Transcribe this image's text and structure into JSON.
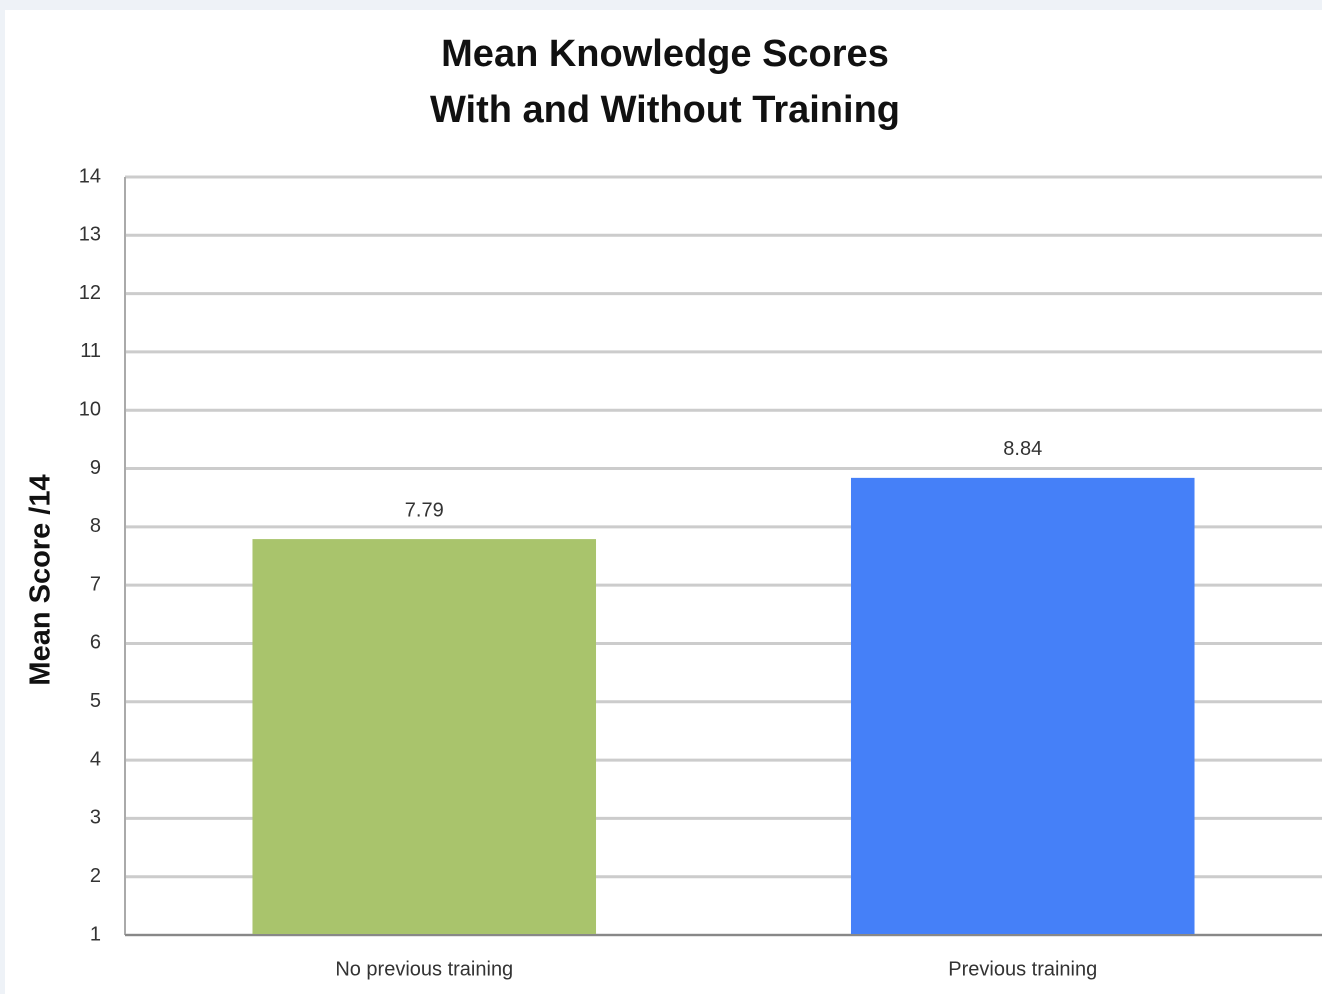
{
  "chart_data": {
    "type": "bar",
    "title": "Mean Knowledge Scores",
    "subtitle": "With and Without Training",
    "ylabel": "Mean Score /14",
    "categories": [
      "No previous training",
      "Previous training"
    ],
    "values": [
      7.79,
      8.84
    ],
    "colors": [
      "#a9c46c",
      "#4580f8"
    ],
    "ylim": [
      1,
      14
    ],
    "yticks": [
      1,
      2,
      3,
      4,
      5,
      6,
      7,
      8,
      9,
      10,
      11,
      12,
      13,
      14
    ],
    "grid": true
  }
}
